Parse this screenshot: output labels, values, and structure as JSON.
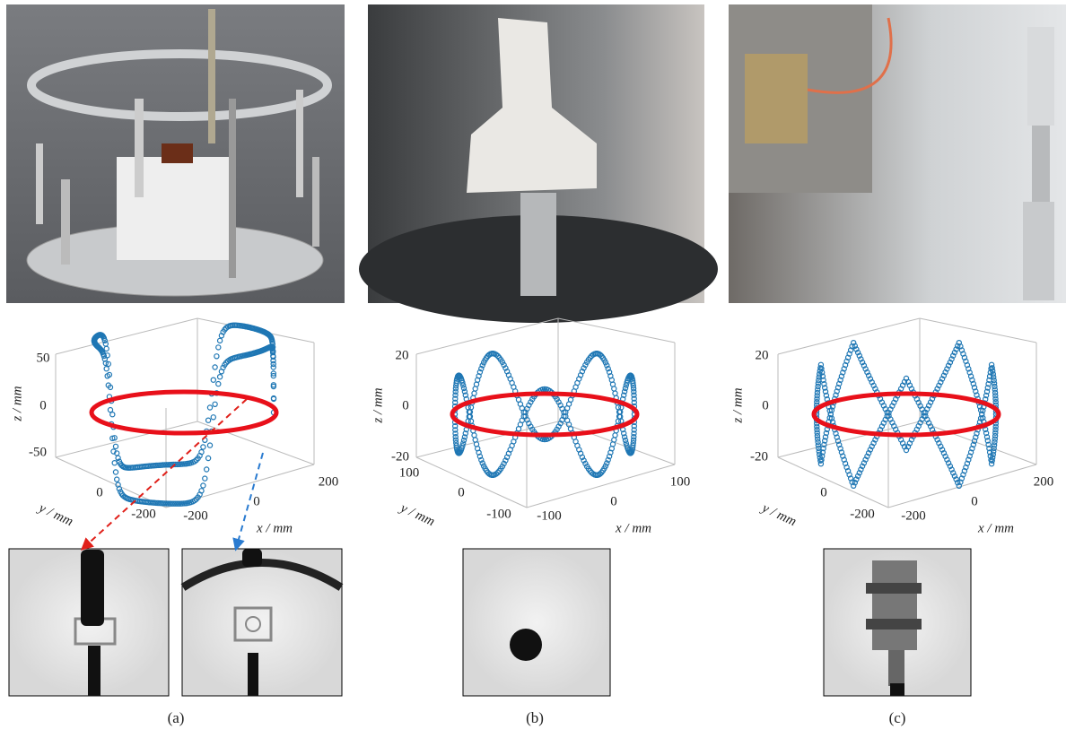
{
  "panels": [
    {
      "caption": "(a)",
      "plot": {
        "z_label": "z / mm",
        "y_label": "y / mm",
        "x_label": "x / mm",
        "z_ticks": [
          "50",
          "0",
          "-50"
        ],
        "y_ticks": [
          "0",
          "-200"
        ],
        "x_ticks": [
          "-200",
          "0",
          "200"
        ]
      }
    },
    {
      "caption": "(b)",
      "plot": {
        "z_label": "z / mm",
        "y_label": "y / mm",
        "x_label": "x / mm",
        "z_ticks": [
          "20",
          "0",
          "-20"
        ],
        "y_ticks": [
          "100",
          "0",
          "-100"
        ],
        "x_ticks": [
          "-100",
          "0",
          "100"
        ]
      }
    },
    {
      "caption": "(c)",
      "plot": {
        "z_label": "z / mm",
        "y_label": "y / mm",
        "x_label": "x / mm",
        "z_ticks": [
          "20",
          "0",
          "-20"
        ],
        "y_ticks": [
          "0",
          "-200"
        ],
        "x_ticks": [
          "-200",
          "0",
          "200"
        ]
      }
    }
  ]
}
